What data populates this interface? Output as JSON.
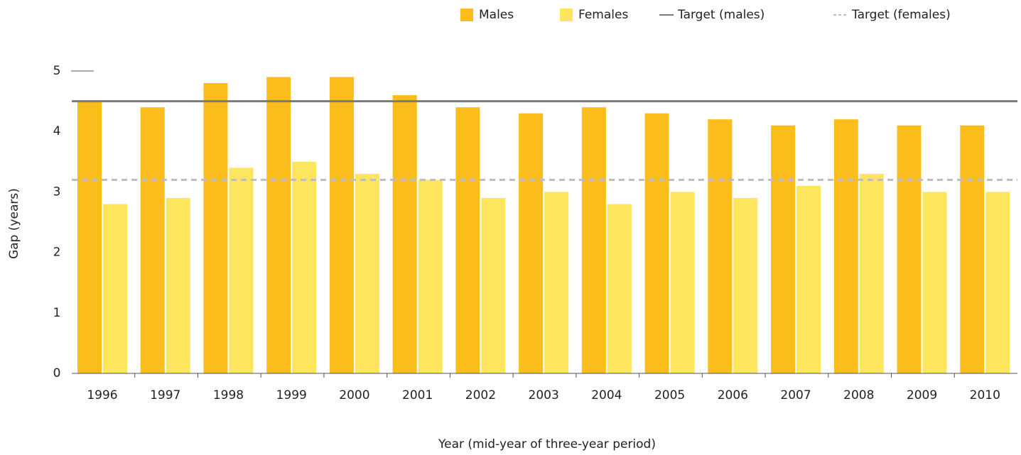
{
  "chart_data": {
    "type": "bar",
    "y_label": "Gap (years)",
    "x_label": "Year (mid-year of three-year period)",
    "categories": [
      "1996",
      "1997",
      "1998",
      "1999",
      "2000",
      "2001",
      "2002",
      "2003",
      "2004",
      "2005",
      "2006",
      "2007",
      "2008",
      "2009",
      "2010"
    ],
    "series": [
      {
        "name": "Males",
        "color": "#fbbd1b",
        "values": [
          4.5,
          4.4,
          4.8,
          4.9,
          4.9,
          4.6,
          4.4,
          4.3,
          4.4,
          4.3,
          4.2,
          4.1,
          4.2,
          4.1,
          4.1
        ]
      },
      {
        "name": "Females",
        "color": "#fde55e",
        "values": [
          2.8,
          2.9,
          3.4,
          3.5,
          3.3,
          3.2,
          2.9,
          3.0,
          2.8,
          3.0,
          2.9,
          3.1,
          3.3,
          3.0,
          3.0
        ]
      }
    ],
    "targets": [
      {
        "name": "Target (males)",
        "value": 4.5,
        "color": "#7a7a7a",
        "dashed": false
      },
      {
        "name": "Target (females)",
        "value": 3.2,
        "color": "#bdbdbd",
        "dashed": true
      }
    ],
    "ylim": [
      0,
      5
    ],
    "yticks": [
      0,
      1,
      2,
      3,
      4,
      5
    ],
    "legend": "top-right"
  }
}
